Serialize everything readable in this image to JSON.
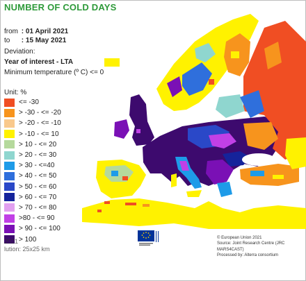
{
  "header": {
    "title": "NUMBER OF COLD DAYS",
    "from_label": "from",
    "from_value": ": 01 April 2021",
    "to_label": "to",
    "to_value": ": 15 May 2021",
    "deviation": "Deviation:",
    "year_of_interest": "Year of interest - LTA",
    "min_temp": "Minimum temperature (º C) <= 0"
  },
  "legend": {
    "unit": "Unit:  %",
    "items": [
      {
        "label": "<= -30",
        "color": "#f04e23"
      },
      {
        "label": "> -30 - <= -20",
        "color": "#f7941d"
      },
      {
        "label": "> -20 - <= -10",
        "color": "#f9c98c"
      },
      {
        "label": "> -10 - <= 10",
        "color": "#fff200"
      },
      {
        "label": "> 10 - <= 20",
        "color": "#b5d99c"
      },
      {
        "label": "> 20 - <= 30",
        "color": "#8fd6cf"
      },
      {
        "label": "> 30 - <=40",
        "color": "#1e9be8"
      },
      {
        "label": "> 40 - <= 50",
        "color": "#2f6fdc"
      },
      {
        "label": "> 50 - <= 60",
        "color": "#2a48c8"
      },
      {
        "label": "> 60 - <= 70",
        "color": "#15239b"
      },
      {
        "label": "> 70 - <= 80",
        "color": "#e2a0f0"
      },
      {
        "label": ">80 - <= 90",
        "color": "#c140e6"
      },
      {
        "label": "> 90 - <= 100",
        "color": "#7a10b5"
      },
      {
        "label": "> 100",
        "color": "#3d0a6e"
      }
    ]
  },
  "footer": {
    "ghost_1": "2021",
    "ghost_2": "lution: 25x25 km",
    "credit_1": "© European Union 2021",
    "credit_2": "Source: Joint Research Centre (JRC MARS4CAST)",
    "credit_3": "Processed by: Alterra consortium"
  },
  "colors": {
    "sea": "#ffffff",
    "land_neutral": "#e8e8e8",
    "border": "#666666",
    "title": "#2e9a3a"
  }
}
